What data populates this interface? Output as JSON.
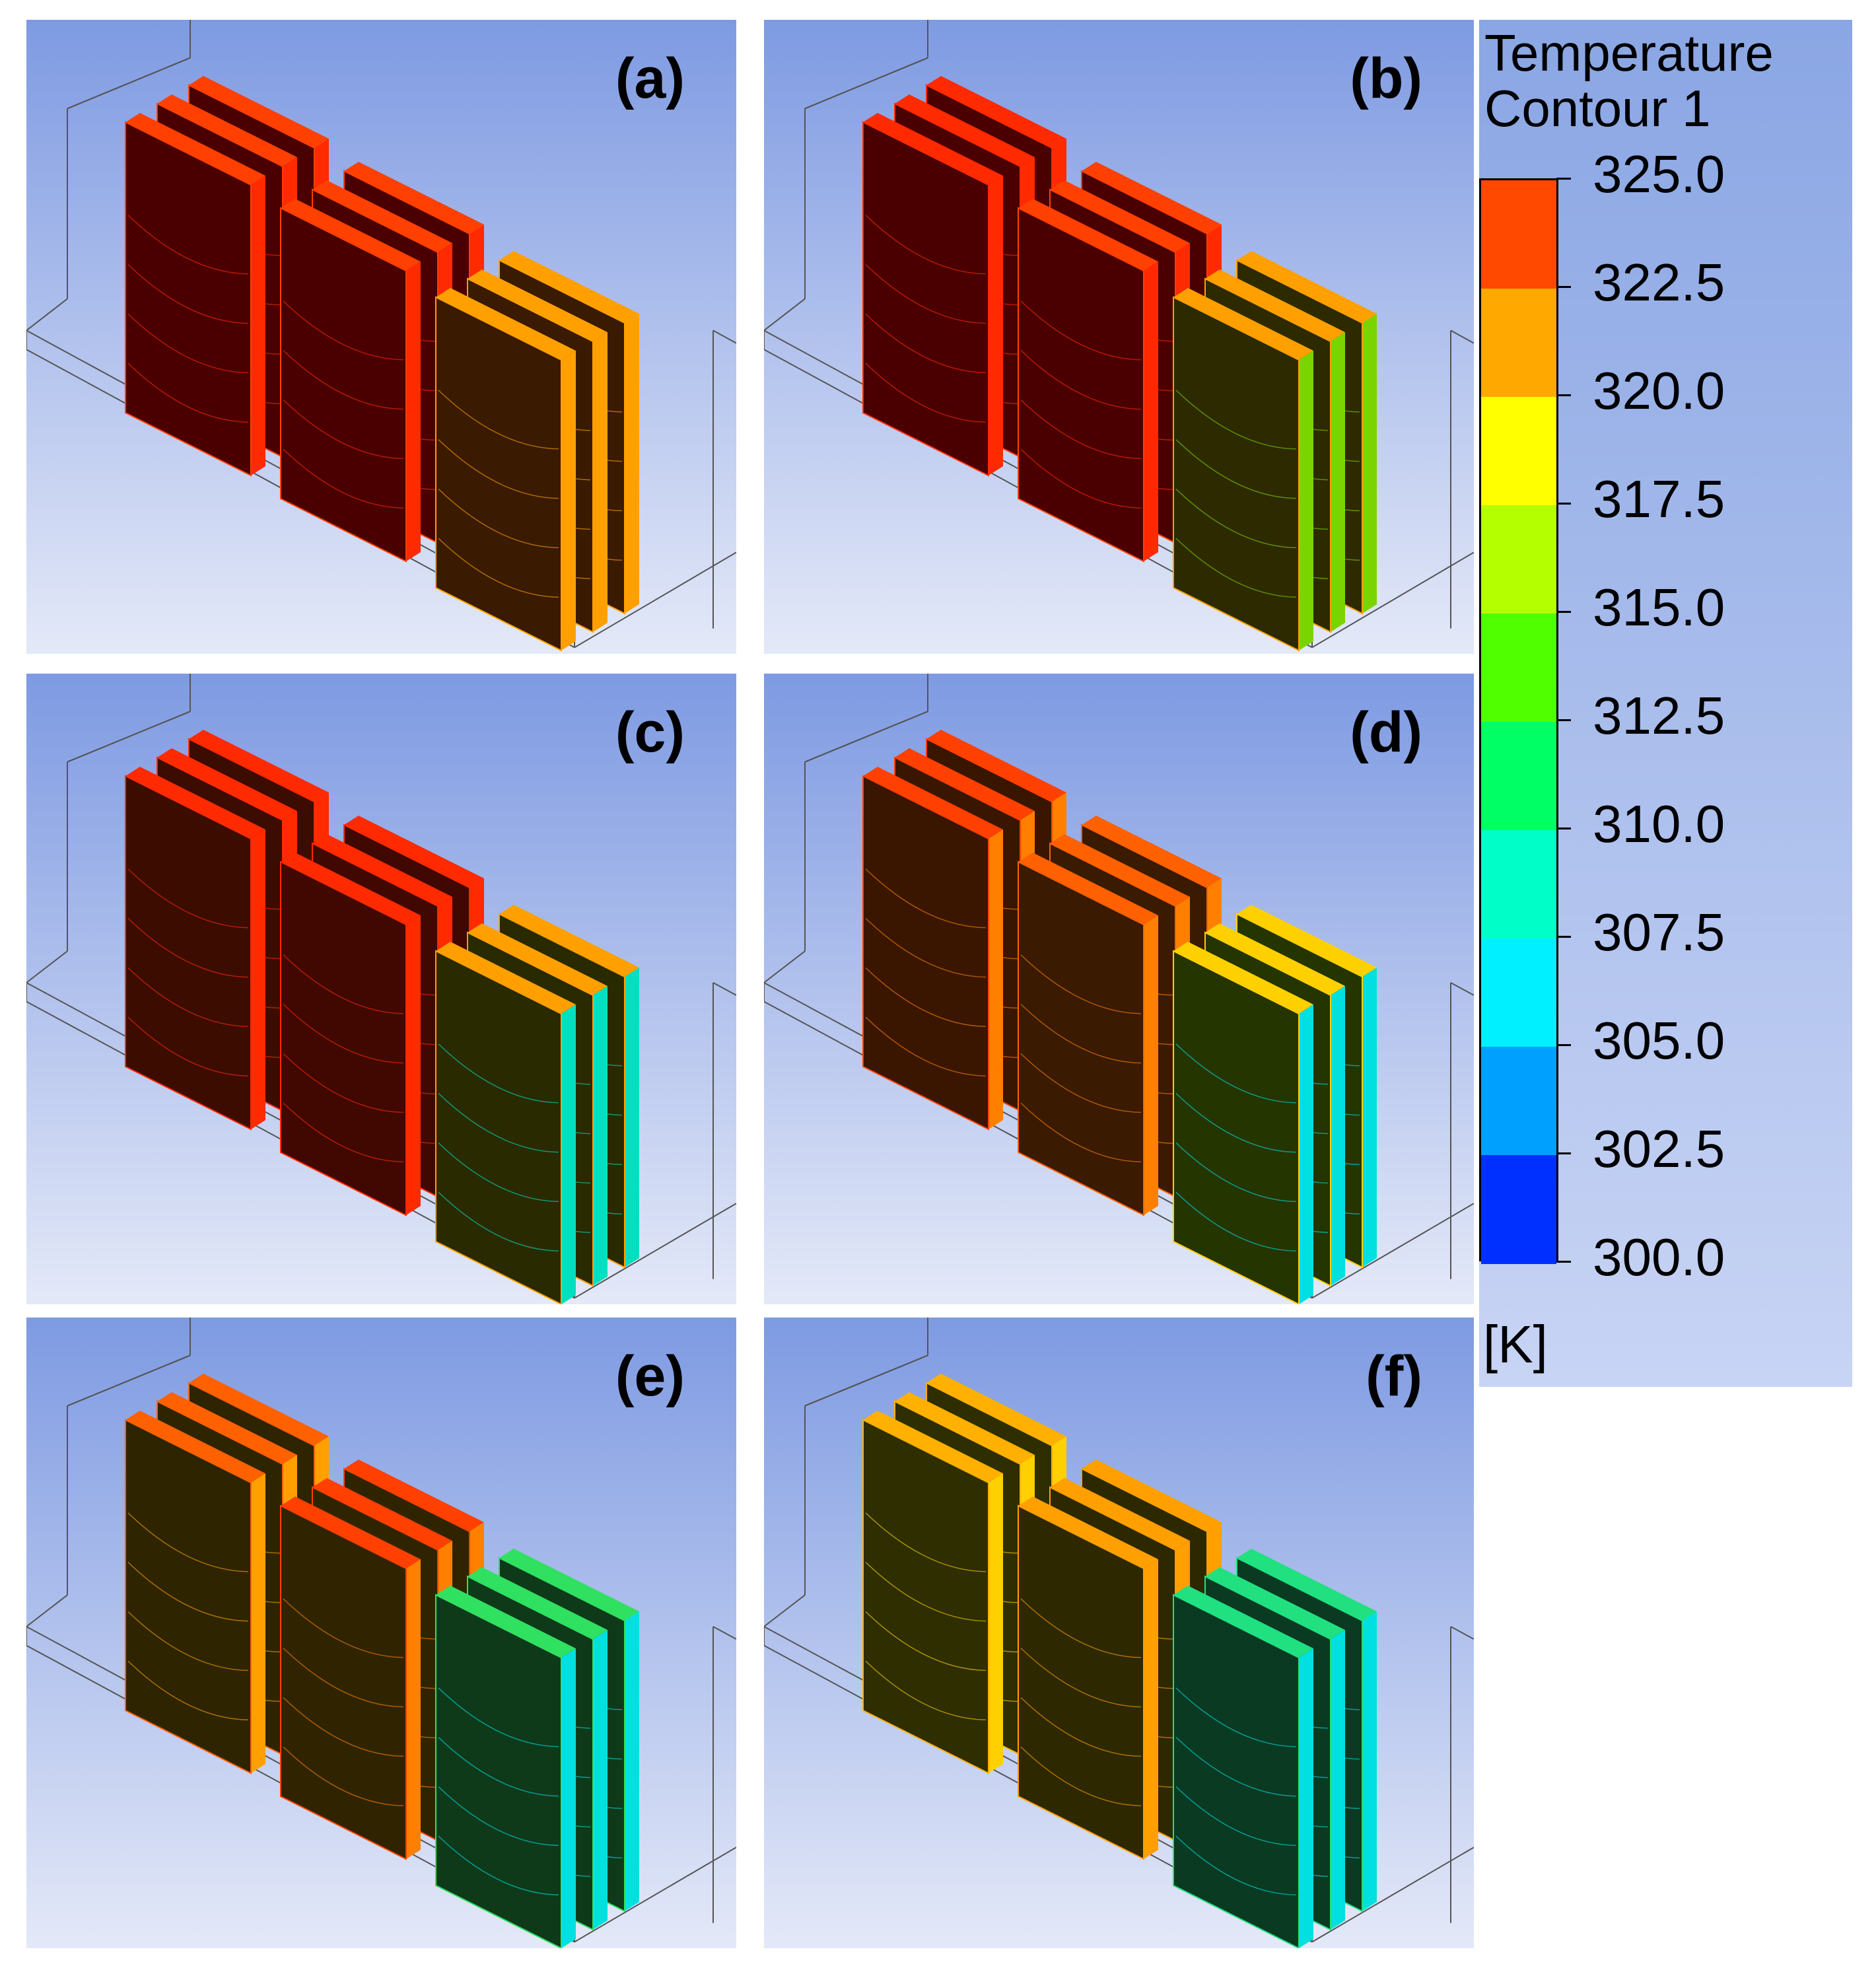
{
  "panels": [
    {
      "id": "a",
      "label": "(a)",
      "front_colors": [
        "#4a0000",
        "#4a0000",
        "#3a1a00"
      ],
      "edge_colors": [
        "#ff2a00",
        "#ff2a00",
        "#ffa000"
      ],
      "top_colors": [
        "#ff4000",
        "#ff4000",
        "#ffa000"
      ]
    },
    {
      "id": "b",
      "label": "(b)",
      "front_colors": [
        "#4a0000",
        "#4a0000",
        "#2e2a00"
      ],
      "edge_colors": [
        "#ff2a00",
        "#ff2a00",
        "#7ad400"
      ],
      "top_colors": [
        "#ff2a00",
        "#ff4000",
        "#ffa000"
      ]
    },
    {
      "id": "c",
      "label": "(c)",
      "front_colors": [
        "#3c0c00",
        "#400800",
        "#2a2a00"
      ],
      "edge_colors": [
        "#ff2a00",
        "#ff2a00",
        "#00e0c0"
      ],
      "top_colors": [
        "#ff2a00",
        "#ff2a00",
        "#ffa000"
      ]
    },
    {
      "id": "d",
      "label": "(d)",
      "front_colors": [
        "#3a1600",
        "#3a1a00",
        "#253500"
      ],
      "edge_colors": [
        "#ff8000",
        "#ff8000",
        "#00e0e0"
      ],
      "top_colors": [
        "#ff4000",
        "#ff6000",
        "#ffd000"
      ]
    },
    {
      "id": "e",
      "label": "(e)",
      "front_colors": [
        "#2e2400",
        "#302400",
        "#0e3a1a"
      ],
      "edge_colors": [
        "#ffa000",
        "#ff8000",
        "#00e0e0"
      ],
      "top_colors": [
        "#ff6000",
        "#ff4000",
        "#30e060"
      ]
    },
    {
      "id": "f",
      "label": "(f)",
      "front_colors": [
        "#2e2e00",
        "#2e2800",
        "#0a3a22"
      ],
      "edge_colors": [
        "#ffd000",
        "#ffa000",
        "#00e0e0"
      ],
      "top_colors": [
        "#ffb000",
        "#ffa000",
        "#20e080"
      ]
    }
  ],
  "legend": {
    "title_line1": "Temperature",
    "title_line2": "Contour 1",
    "unit": "[K]",
    "ticks": [
      "325.0",
      "322.5",
      "320.0",
      "317.5",
      "315.0",
      "312.5",
      "310.0",
      "307.5",
      "305.0",
      "302.5",
      "300.0"
    ],
    "colors": [
      "#ff4800",
      "#ffa800",
      "#ffff00",
      "#b4ff00",
      "#50ff00",
      "#00ff64",
      "#00ffc8",
      "#00f0ff",
      "#00a0ff",
      "#0030ff"
    ]
  }
}
